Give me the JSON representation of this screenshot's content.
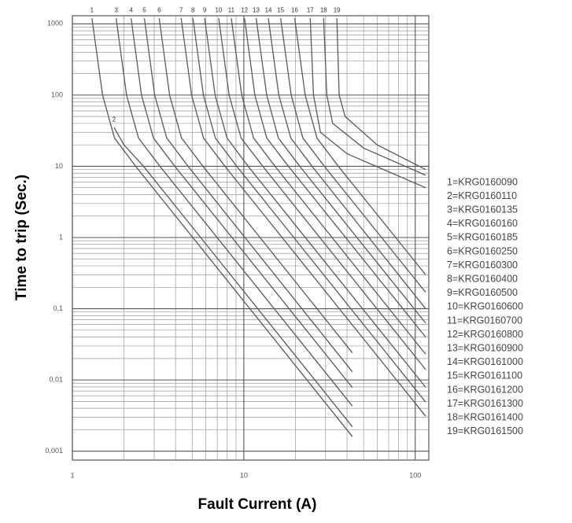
{
  "chart_data": {
    "type": "line",
    "x_label": "Fault Current (A)",
    "y_label": "Time to trip (Sec.)",
    "log_x": true,
    "log_y": true,
    "grid": true,
    "minor_grid": true,
    "legend": "right",
    "xlim": [
      1,
      120
    ],
    "xticks": [
      1,
      10,
      100
    ],
    "ylim": [
      0.00075,
      1300
    ],
    "yticks": [
      {
        "value": 0.001,
        "label": "0,001"
      },
      {
        "value": 0.01,
        "label": "0,01"
      },
      {
        "value": 0.1,
        "label": "0,1"
      },
      1,
      10,
      100,
      1000
    ],
    "series": [
      {
        "name": "1=KRG0160090",
        "label": "1",
        "color": "#5a5a5a",
        "x": [
          1.3,
          1.5,
          1.76,
          2.34,
          43
        ],
        "values": [
          1200,
          100,
          25,
          10,
          0.0016
        ]
      },
      {
        "name": "2=KRG0160110",
        "label": "2",
        "color": "#5a5a5a",
        "x": [
          1.75,
          2.0,
          2.6,
          43
        ],
        "values": [
          35,
          20,
          10,
          0.0022
        ]
      },
      {
        "name": "3=KRG0160135",
        "label": "3",
        "color": "#5a5a5a",
        "x": [
          1.8,
          2.07,
          2.43,
          3.24,
          43
        ],
        "values": [
          1200,
          100,
          25,
          10,
          0.0043
        ]
      },
      {
        "name": "4=KRG0160160",
        "label": "4",
        "color": "#5a5a5a",
        "x": [
          2.2,
          2.53,
          2.97,
          3.96,
          43
        ],
        "values": [
          1200,
          100,
          25,
          10,
          0.0078
        ]
      },
      {
        "name": "5=KRG0160185",
        "label": "5",
        "color": "#5a5a5a",
        "x": [
          2.63,
          3.02,
          3.55,
          4.73,
          43
        ],
        "values": [
          1200,
          100,
          25,
          10,
          0.013
        ]
      },
      {
        "name": "6=KRG0160250",
        "label": "6",
        "color": "#5a5a5a",
        "x": [
          3.21,
          3.69,
          4.33,
          5.78,
          43
        ],
        "values": [
          1200,
          100,
          25,
          10,
          0.024
        ]
      },
      {
        "name": "7=KRG0160300",
        "label": "7",
        "color": "#5a5a5a",
        "x": [
          4.31,
          4.96,
          5.82,
          7.76,
          115
        ],
        "values": [
          1200,
          100,
          25,
          10,
          0.0031
        ]
      },
      {
        "name": "8=KRG0160400",
        "label": "8",
        "color": "#5a5a5a",
        "x": [
          5.05,
          5.81,
          6.82,
          9.09,
          115
        ],
        "values": [
          1200,
          100,
          25,
          10,
          0.0049
        ]
      },
      {
        "name": "9=KRG0160500",
        "label": "9",
        "color": "#5a5a5a",
        "x": [
          5.91,
          6.8,
          7.98,
          10.6,
          115
        ],
        "values": [
          1200,
          100,
          25,
          10,
          0.0079
        ]
      },
      {
        "name": "10=KRG0160600",
        "label": "10",
        "color": "#5a5a5a",
        "x": [
          7.14,
          8.21,
          9.64,
          12.9,
          115
        ],
        "values": [
          1200,
          100,
          25,
          10,
          0.014
        ]
      },
      {
        "name": "11=KRG0160700",
        "label": "11",
        "color": "#5a5a5a",
        "x": [
          8.45,
          9.72,
          11.4,
          15.2,
          115
        ],
        "values": [
          1200,
          100,
          25,
          10,
          0.023
        ]
      },
      {
        "name": "12=KRG0160800",
        "label": "12",
        "color": "#5a5a5a",
        "x": [
          10.1,
          11.6,
          13.6,
          18.2,
          115
        ],
        "values": [
          1200,
          100,
          25,
          10,
          0.04
        ]
      },
      {
        "name": "13=KRG0160900",
        "label": "13",
        "color": "#5a5a5a",
        "x": [
          11.8,
          13.6,
          15.9,
          21.2,
          115
        ],
        "values": [
          1200,
          100,
          25,
          10,
          0.063
        ]
      },
      {
        "name": "14=KRG0161000",
        "label": "14",
        "color": "#5a5a5a",
        "x": [
          13.9,
          16,
          18.8,
          25,
          115
        ],
        "values": [
          1200,
          100,
          25,
          10,
          0.1
        ]
      },
      {
        "name": "15=KRG0161100",
        "label": "15",
        "color": "#5a5a5a",
        "x": [
          16.4,
          18.9,
          22.1,
          29.5,
          115
        ],
        "values": [
          1200,
          100,
          25,
          10,
          0.17
        ]
      },
      {
        "name": "16=KRG0161200",
        "label": "16",
        "color": "#5a5a5a",
        "x": [
          19.8,
          22.8,
          26.7,
          35.6,
          115
        ],
        "values": [
          1200,
          100,
          25,
          10,
          0.3
        ]
      },
      {
        "name": "17=KRG0161300",
        "label": "17",
        "color": "#5a5a5a",
        "x": [
          24.4,
          25.5,
          28,
          40,
          115
        ],
        "values": [
          1200,
          100,
          30,
          15,
          5
        ]
      },
      {
        "name": "18=KRG0161400",
        "label": "18",
        "color": "#5a5a5a",
        "x": [
          29.2,
          30.5,
          33,
          50,
          115
        ],
        "values": [
          1200,
          100,
          40,
          18,
          7.5
        ]
      },
      {
        "name": "19=KRG0161500",
        "label": "19",
        "color": "#5a5a5a",
        "x": [
          34.9,
          36,
          39,
          60,
          115
        ],
        "values": [
          1200,
          100,
          50,
          20,
          9
        ]
      }
    ]
  }
}
